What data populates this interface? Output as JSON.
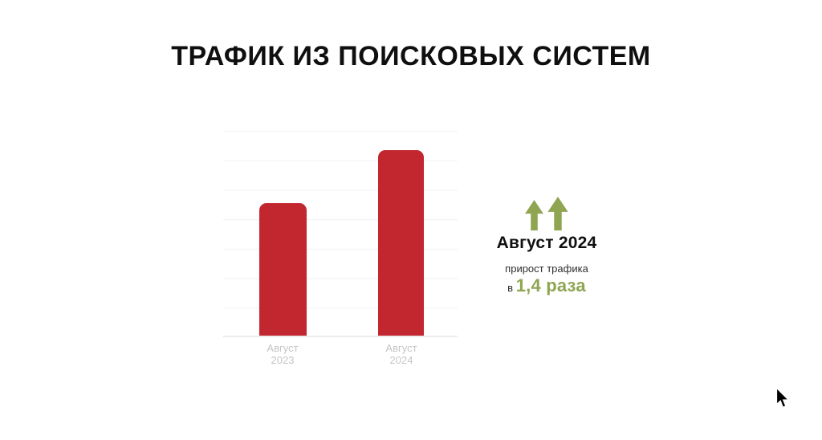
{
  "slide": {
    "title": "ТРАФИК ИЗ ПОИСКОВЫХ СИСТЕМ"
  },
  "chart_data": {
    "type": "bar",
    "title": "ТРАФИК ИЗ ПОИСКОВЫХ СИСТЕМ",
    "categories": [
      "Август 2023",
      "Август 2024"
    ],
    "values": [
      1,
      1.4
    ],
    "values_are_relative": true,
    "x_tick_labels": [
      {
        "line1": "Август",
        "line2": "2023"
      },
      {
        "line1": "Август",
        "line2": "2024"
      }
    ],
    "xlabel": "",
    "ylabel": "",
    "y_tick_labels": [],
    "gridlines": true,
    "legend": false,
    "bar_color": "#c2262e"
  },
  "callout": {
    "icon": "double-up-arrow",
    "heading": "Август 2024",
    "subtext": "прирост трафика",
    "prefix": "в",
    "highlight": "1,4 раза"
  },
  "colors": {
    "bar_red": "#c2262e",
    "accent_green": "#8fa552",
    "text_dark": "#101010",
    "axis_label_gray": "#c5c5c5",
    "gridline_gray": "#f1f1f1",
    "background": "#ffffff"
  },
  "cursor": {
    "icon": "mouse-pointer"
  }
}
